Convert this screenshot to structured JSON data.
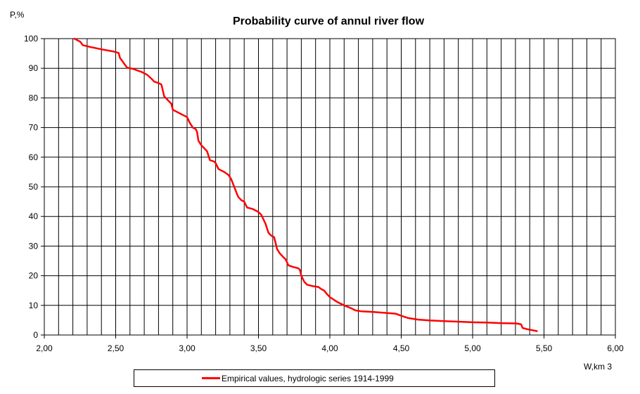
{
  "chart_data": {
    "type": "line",
    "title": "Probability curve of annul river flow",
    "xlabel": "W,km 3",
    "ylabel": "P,%",
    "xlim": [
      2.0,
      6.0
    ],
    "ylim": [
      0,
      100
    ],
    "x_ticks": [
      "2,00",
      "2,50",
      "3,00",
      "3,50",
      "4,00",
      "4,50",
      "5,00",
      "5,50",
      "6,00"
    ],
    "y_ticks": [
      "0",
      "10",
      "20",
      "30",
      "40",
      "50",
      "60",
      "70",
      "80",
      "90",
      "100"
    ],
    "grid": true,
    "legend_position": "bottom",
    "series_color": "#ff0000",
    "series": [
      {
        "name": "Empirical values, hydrologic series 1914-1999",
        "x": [
          2.21,
          2.25,
          2.27,
          2.32,
          2.4,
          2.48,
          2.52,
          2.53,
          2.56,
          2.58,
          2.62,
          2.68,
          2.72,
          2.75,
          2.77,
          2.8,
          2.82,
          2.83,
          2.84,
          2.87,
          2.89,
          2.9,
          2.92,
          2.98,
          3.0,
          3.02,
          3.04,
          3.06,
          3.07,
          3.08,
          3.1,
          3.12,
          3.14,
          3.16,
          3.19,
          3.2,
          3.22,
          3.26,
          3.29,
          3.31,
          3.33,
          3.35,
          3.36,
          3.38,
          3.4,
          3.42,
          3.46,
          3.5,
          3.52,
          3.54,
          3.55,
          3.57,
          3.59,
          3.61,
          3.62,
          3.63,
          3.65,
          3.67,
          3.69,
          3.71,
          3.74,
          3.78,
          3.79,
          3.8,
          3.81,
          3.82,
          3.84,
          3.88,
          3.92,
          3.94,
          3.96,
          3.98,
          4.0,
          4.05,
          4.1,
          4.15,
          4.18,
          4.22,
          4.3,
          4.38,
          4.46,
          4.5,
          4.55,
          4.62,
          4.7,
          4.8,
          4.9,
          5.0,
          5.1,
          5.2,
          5.3,
          5.32,
          5.34,
          5.35,
          5.38,
          5.42,
          5.45
        ],
        "values": [
          100,
          99,
          97.8,
          97.2,
          96.4,
          95.7,
          95.2,
          93.5,
          91.5,
          90.2,
          89.8,
          88.8,
          87.8,
          86.5,
          85.5,
          85,
          84.5,
          82.5,
          80.5,
          79,
          78,
          76,
          75.5,
          74,
          73.5,
          71.5,
          70,
          69.5,
          68.5,
          65.5,
          64,
          63,
          62,
          59,
          58.5,
          58,
          56,
          55,
          54,
          52.5,
          50,
          47.5,
          46.5,
          45.5,
          45,
          43,
          42.5,
          41.5,
          40.5,
          38.5,
          37.5,
          34.5,
          33.5,
          33,
          31,
          29,
          27.5,
          26.5,
          25.5,
          23.5,
          23,
          22.5,
          22,
          20,
          19,
          18,
          17,
          16.5,
          16.2,
          15.5,
          15,
          13.8,
          12.8,
          11.2,
          10,
          9,
          8.3,
          8,
          7.8,
          7.5,
          7.2,
          6.5,
          5.7,
          5.2,
          4.9,
          4.7,
          4.5,
          4.3,
          4.2,
          4.0,
          3.9,
          3.8,
          3.6,
          2.4,
          2.0,
          1.6,
          1.3
        ]
      }
    ]
  }
}
